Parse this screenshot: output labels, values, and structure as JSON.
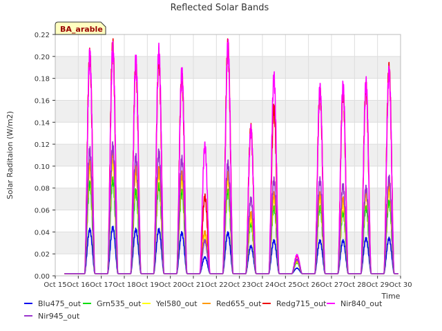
{
  "chart_data": {
    "type": "line",
    "title": "Reflected Solar Bands",
    "xlabel": "Time",
    "ylabel": "Solar Raditaion (W/m2)",
    "site_badge": "BA_arable",
    "xlim": [
      15,
      30
    ],
    "ylim": [
      0,
      0.22
    ],
    "x_ticks": [
      "Oct 15",
      "Oct 16",
      "Oct 17",
      "Oct 18",
      "Oct 19",
      "Oct 20",
      "Oct 21",
      "Oct 22",
      "Oct 23",
      "Oct 24",
      "Oct 25",
      "Oct 26",
      "Oct 27",
      "Oct 28",
      "Oct 29",
      "Oct 30"
    ],
    "y_ticks": [
      "0.00",
      "0.02",
      "0.04",
      "0.06",
      "0.08",
      "0.10",
      "0.12",
      "0.14",
      "0.16",
      "0.18",
      "0.20",
      "0.22"
    ],
    "grid": true,
    "legend_position": "bottom",
    "days": [
      "Oct 16",
      "Oct 17",
      "Oct 18",
      "Oct 19",
      "Oct 20",
      "Oct 21",
      "Oct 22",
      "Oct 23",
      "Oct 24",
      "Oct 25",
      "Oct 26",
      "Oct 27",
      "Oct 28",
      "Oct 29"
    ],
    "series": [
      {
        "name": "Blu475_out",
        "color": "#0000ee",
        "daily_peak": [
          0.04,
          0.042,
          0.04,
          0.04,
          0.037,
          0.015,
          0.037,
          0.025,
          0.03,
          0.005,
          0.03,
          0.03,
          0.032,
          0.032
        ]
      },
      {
        "name": "Grn535_out",
        "color": "#00dd00",
        "daily_peak": [
          0.082,
          0.085,
          0.075,
          0.08,
          0.075,
          0.03,
          0.075,
          0.045,
          0.06,
          0.01,
          0.06,
          0.055,
          0.06,
          0.065
        ]
      },
      {
        "name": "Yel580_out",
        "color": "#ffff00",
        "daily_peak": [
          0.095,
          0.1,
          0.09,
          0.09,
          0.085,
          0.035,
          0.085,
          0.05,
          0.068,
          0.011,
          0.068,
          0.062,
          0.07,
          0.075
        ]
      },
      {
        "name": "Red655_out",
        "color": "#ff9900",
        "daily_peak": [
          0.1,
          0.11,
          0.095,
          0.095,
          0.09,
          0.038,
          0.09,
          0.055,
          0.072,
          0.012,
          0.072,
          0.068,
          0.075,
          0.08
        ]
      },
      {
        "name": "Redg715_out",
        "color": "#ee0000",
        "daily_peak": [
          0.198,
          0.207,
          0.19,
          0.195,
          0.18,
          0.07,
          0.207,
          0.132,
          0.15,
          0.016,
          0.165,
          0.165,
          0.17,
          0.186
        ]
      },
      {
        "name": "Nir840_out",
        "color": "#ff00ff",
        "daily_peak": [
          0.199,
          0.204,
          0.194,
          0.202,
          0.183,
          0.116,
          0.207,
          0.131,
          0.178,
          0.017,
          0.168,
          0.17,
          0.173,
          0.183
        ]
      },
      {
        "name": "Nir945_out",
        "color": "#9933cc",
        "daily_peak": [
          0.112,
          0.116,
          0.106,
          0.11,
          0.104,
          0.03,
          0.1,
          0.068,
          0.085,
          0.013,
          0.085,
          0.08,
          0.078,
          0.087
        ]
      }
    ]
  }
}
